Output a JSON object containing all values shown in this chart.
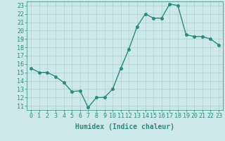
{
  "x": [
    0,
    1,
    2,
    3,
    4,
    5,
    6,
    7,
    8,
    9,
    10,
    11,
    12,
    13,
    14,
    15,
    16,
    17,
    18,
    19,
    20,
    21,
    22,
    23
  ],
  "y": [
    15.5,
    15.0,
    15.0,
    14.5,
    13.8,
    12.7,
    12.8,
    10.8,
    12.0,
    12.0,
    13.0,
    15.5,
    17.8,
    20.5,
    22.0,
    21.5,
    21.5,
    23.2,
    23.0,
    19.5,
    19.3,
    19.3,
    19.0,
    18.3
  ],
  "line_color": "#2e8b7a",
  "marker_color": "#2e8b7a",
  "bg_color": "#cce8e8",
  "grid_color": "#b0cfcf",
  "xlabel": "Humidex (Indice chaleur)",
  "ylim": [
    10.5,
    23.5
  ],
  "xlim": [
    -0.5,
    23.5
  ],
  "yticks": [
    11,
    12,
    13,
    14,
    15,
    16,
    17,
    18,
    19,
    20,
    21,
    22,
    23
  ],
  "xticks": [
    0,
    1,
    2,
    3,
    4,
    5,
    6,
    7,
    8,
    9,
    10,
    11,
    12,
    13,
    14,
    15,
    16,
    17,
    18,
    19,
    20,
    21,
    22,
    23
  ],
  "xtick_labels": [
    "0",
    "1",
    "2",
    "3",
    "4",
    "5",
    "6",
    "7",
    "8",
    "9",
    "10",
    "11",
    "12",
    "13",
    "14",
    "15",
    "16",
    "17",
    "18",
    "19",
    "20",
    "21",
    "22",
    "23"
  ],
  "ytick_labels": [
    "11",
    "12",
    "13",
    "14",
    "15",
    "16",
    "17",
    "18",
    "19",
    "20",
    "21",
    "22",
    "23"
  ],
  "tick_color": "#2e8b7a",
  "xlabel_fontsize": 7,
  "tick_fontsize": 6,
  "line_width": 1.0,
  "marker_size": 2.5
}
